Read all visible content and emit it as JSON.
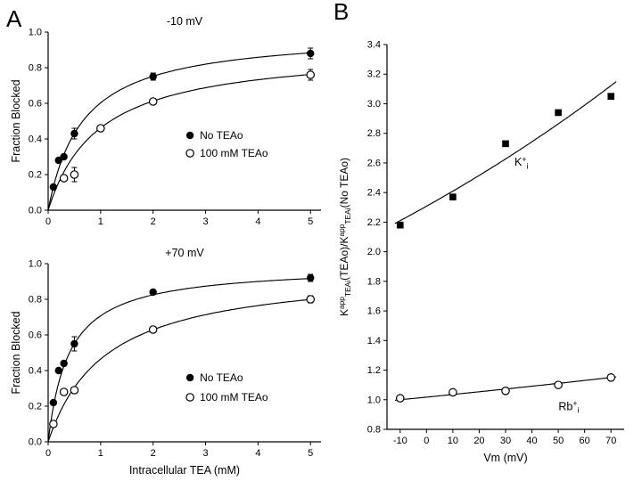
{
  "figure": {
    "panel_a_label": "A",
    "panel_b_label": "B"
  },
  "chart_data": [
    {
      "id": "chart-a-top",
      "type": "scatter",
      "title": "-10 mV",
      "xlabel": "",
      "ylabel": "Fraction Blocked",
      "xlim": [
        0,
        5.2
      ],
      "ylim": [
        0,
        1.0
      ],
      "xticks": {
        "values": [
          0,
          1,
          2,
          3,
          4,
          5
        ],
        "labels": [
          "0",
          "1",
          "2",
          "3",
          "4",
          "5"
        ]
      },
      "yticks": {
        "values": [
          0,
          0.2,
          0.4,
          0.6,
          0.8,
          1.0
        ],
        "labels": [
          "0.0",
          "0.2",
          "0.4",
          "0.6",
          "0.8",
          "1.0"
        ]
      },
      "series": [
        {
          "name": "No TEAo",
          "marker": "circle-filled",
          "fit": {
            "type": "hyp",
            "bmax": 1.0,
            "k": 0.66,
            "range": [
              0,
              5
            ]
          },
          "points": [
            [
              0.1,
              0.13
            ],
            [
              0.2,
              0.28
            ],
            [
              0.3,
              0.3
            ],
            [
              0.5,
              0.43,
              0.03
            ],
            [
              2,
              0.75,
              0.02
            ],
            [
              5,
              0.88,
              0.03
            ]
          ]
        },
        {
          "name": "100 mM TEAo",
          "marker": "circle-open",
          "fit": {
            "type": "hyp",
            "bmax": 0.91,
            "k": 0.97,
            "range": [
              0,
              5
            ]
          },
          "points": [
            [
              0.3,
              0.18
            ],
            [
              0.5,
              0.2,
              0.04
            ],
            [
              1,
              0.46
            ],
            [
              2,
              0.61
            ],
            [
              5,
              0.76,
              0.03
            ]
          ]
        }
      ],
      "legend": {
        "fx": 0.52,
        "fy": 0.58,
        "row_h": 0.1
      }
    },
    {
      "id": "chart-a-bottom",
      "type": "scatter",
      "title": "+70 mV",
      "xlabel": "Intracellular TEA (mM)",
      "ylabel": "Fraction Blocked",
      "xlim": [
        0,
        5.2
      ],
      "ylim": [
        0,
        1.0
      ],
      "xticks": {
        "values": [
          0,
          1,
          2,
          3,
          4,
          5
        ],
        "labels": [
          "0",
          "1",
          "2",
          "3",
          "4",
          "5"
        ]
      },
      "yticks": {
        "values": [
          0,
          0.2,
          0.4,
          0.6,
          0.8,
          1.0
        ],
        "labels": [
          "0.0",
          "0.2",
          "0.4",
          "0.6",
          "0.8",
          "1.0"
        ]
      },
      "series": [
        {
          "name": "No TEAo",
          "marker": "circle-filled",
          "fit": {
            "type": "hyp",
            "bmax": 0.99,
            "k": 0.4,
            "range": [
              0,
              5
            ]
          },
          "points": [
            [
              0.1,
              0.22
            ],
            [
              0.2,
              0.4
            ],
            [
              0.3,
              0.44
            ],
            [
              0.5,
              0.55,
              0.04
            ],
            [
              2,
              0.84
            ],
            [
              5,
              0.92,
              0.02
            ]
          ]
        },
        {
          "name": "100 mM TEAo",
          "marker": "circle-open",
          "fit": {
            "type": "hyp",
            "bmax": 0.975,
            "k": 1.1,
            "range": [
              0,
              5
            ]
          },
          "points": [
            [
              0.1,
              0.1
            ],
            [
              0.3,
              0.28
            ],
            [
              0.5,
              0.29
            ],
            [
              2,
              0.63
            ],
            [
              5,
              0.8,
              0.02
            ]
          ]
        }
      ],
      "legend": {
        "fx": 0.52,
        "fy": 0.64,
        "row_h": 0.11
      }
    },
    {
      "id": "chart-b",
      "type": "scatter",
      "title": "",
      "xlabel": "Vm (mV)",
      "ylabel_rich": "K^{app}_{TEAi}(TEAo)/K^{app}_{TEAi}(No TEAo)",
      "xlim": [
        -15,
        75
      ],
      "ylim": [
        0.8,
        3.4
      ],
      "xticks": {
        "values": [
          -10,
          0,
          10,
          20,
          30,
          40,
          50,
          60,
          70
        ],
        "labels": [
          "-10",
          "0",
          "10",
          "20",
          "30",
          "40",
          "50",
          "60",
          "70"
        ]
      },
      "yticks": {
        "values": [
          0.8,
          1.0,
          1.2,
          1.4,
          1.6,
          1.8,
          2.0,
          2.2,
          2.4,
          2.6,
          2.8,
          3.0,
          3.2,
          3.4
        ],
        "labels": [
          "0.8",
          "1.0",
          "1.2",
          "1.4",
          "1.6",
          "1.8",
          "2.0",
          "2.2",
          "2.4",
          "2.6",
          "2.8",
          "3.0",
          "3.2",
          "3.4"
        ]
      },
      "series": [
        {
          "name": "K+i",
          "marker": "square-filled",
          "fit": {
            "type": "exp",
            "a": 2.21,
            "b": 0.00432,
            "x0": -10,
            "range": [
              -12,
              72
            ]
          },
          "points": [
            [
              -10,
              2.18
            ],
            [
              10,
              2.37
            ],
            [
              30,
              2.73
            ],
            [
              50,
              2.94
            ],
            [
              70,
              3.05
            ]
          ]
        },
        {
          "name": "Rb+i",
          "marker": "circle-open",
          "fit": {
            "type": "exp",
            "a": 1.0,
            "b": 0.00175,
            "x0": -10,
            "range": [
              -12,
              72
            ]
          },
          "points": [
            [
              -10,
              1.01
            ],
            [
              10,
              1.05
            ],
            [
              30,
              1.06
            ],
            [
              50,
              1.1
            ],
            [
              70,
              1.15
            ]
          ]
        }
      ],
      "annotations": [
        {
          "x": 36,
          "y": 2.58,
          "text": "K^{+}_{i}"
        },
        {
          "x": 54,
          "y": 0.93,
          "text": "Rb^{+}_{i}"
        }
      ]
    }
  ]
}
